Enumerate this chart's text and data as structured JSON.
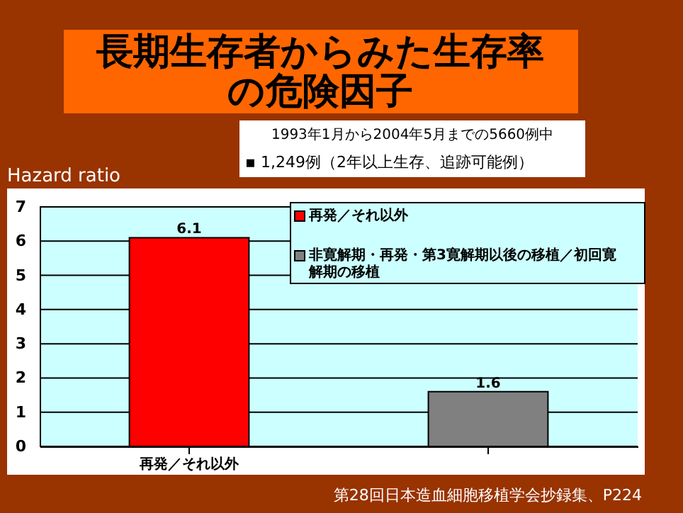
{
  "chart_data": {
    "type": "bar",
    "title": "長期生存者からみた生存率の危険因子",
    "subtitle": "1993年1月から2004年5月までの5660例中",
    "ylabel": "Hazard ratio",
    "categories": [
      "再発／それ以外",
      null
    ],
    "series": [
      {
        "name": "再発／それ以外",
        "color": "#ff0000",
        "values": [
          6.1,
          null
        ]
      },
      {
        "name": "非寛解期・再発・第3寛解期以後の移植／初回寛解期の移植",
        "color": "#808080",
        "values": [
          null,
          1.6
        ]
      }
    ],
    "ylim": [
      0,
      7
    ],
    "yticks": [
      0,
      1,
      2,
      3,
      4,
      5,
      6,
      7
    ],
    "grid": "y",
    "legend": "top right",
    "data_labels": true,
    "annotations": [
      "▪ 1,249例（2年以上生存、追跡可能例）",
      "第28回日本造血細胞移植学会抄録集、P224"
    ]
  }
}
